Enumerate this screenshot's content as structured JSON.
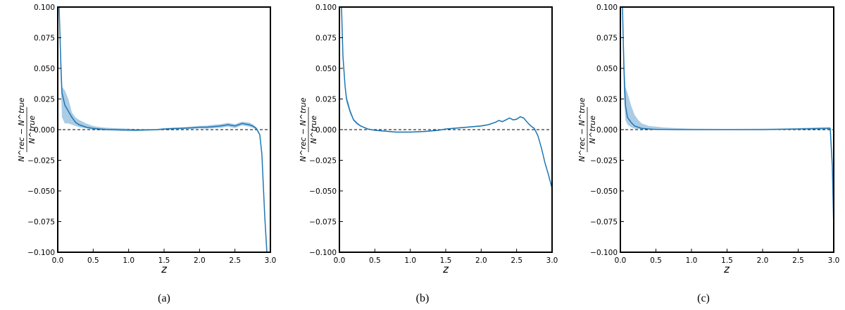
{
  "colors": {
    "line": "#1f77b4",
    "band": "#9cc3e1",
    "zero_line": "#000000",
    "frame": "#000000"
  },
  "labels": {
    "xlabel": "z",
    "ylabel_num": "N^rec − N^true",
    "ylabel_den": "N^true"
  },
  "chart_data": [
    {
      "type": "line",
      "caption": "(a)",
      "xlabel": "z",
      "ylabel": "(N^rec − N^true) / N^true",
      "xlim": [
        0.0,
        3.0
      ],
      "ylim": [
        -0.1,
        0.1
      ],
      "xticks": [
        "0.0",
        "0.5",
        "1.0",
        "1.5",
        "2.0",
        "2.5",
        "3.0"
      ],
      "yticks": [
        "0.100",
        "0.075",
        "0.050",
        "0.025",
        "0.000",
        "−0.025",
        "−0.050",
        "−0.075",
        "−0.100"
      ],
      "reference_line_y": 0.0,
      "series": [
        {
          "x": [
            0.02,
            0.04,
            0.06,
            0.1,
            0.15,
            0.2,
            0.25,
            0.3,
            0.4,
            0.5,
            0.6,
            0.7,
            0.8,
            0.9,
            1.0,
            1.1,
            1.2,
            1.3,
            1.4,
            1.5,
            1.6,
            1.7,
            1.8,
            1.9,
            2.0,
            2.1,
            2.2,
            2.3,
            2.4,
            2.5,
            2.6,
            2.7,
            2.75,
            2.8,
            2.85,
            2.88,
            2.9,
            2.92,
            2.95
          ],
          "y": [
            0.1,
            0.06,
            0.03,
            0.02,
            0.015,
            0.01,
            0.006,
            0.004,
            0.002,
            0.001,
            0.0005,
            0.0002,
            0.0001,
            -0.0001,
            -0.0003,
            -0.0004,
            -0.0003,
            -0.0002,
            0.0,
            0.0005,
            0.0008,
            0.001,
            0.0012,
            0.0015,
            0.002,
            0.002,
            0.0025,
            0.003,
            0.004,
            0.003,
            0.005,
            0.004,
            0.003,
            0.001,
            -0.004,
            -0.02,
            -0.045,
            -0.07,
            -0.1
          ],
          "band_low": [
            0.1,
            0.045,
            0.01,
            0.005,
            0.005,
            0.004,
            0.003,
            0.002,
            0.001,
            0.0,
            -0.0005,
            -0.0008,
            -0.001,
            -0.0012,
            -0.0012,
            -0.0012,
            -0.001,
            -0.0008,
            -0.0006,
            -0.0003,
            0.0,
            0.0002,
            0.0004,
            0.0006,
            0.001,
            0.0008,
            0.0012,
            0.0015,
            0.0025,
            0.0012,
            0.0035,
            0.0025,
            0.0015,
            0.0,
            -0.005,
            -0.021,
            -0.046,
            -0.071,
            -0.1
          ],
          "band_high": [
            0.1,
            0.075,
            0.035,
            0.032,
            0.025,
            0.014,
            0.01,
            0.008,
            0.005,
            0.003,
            0.002,
            0.0015,
            0.0012,
            0.001,
            0.0008,
            0.0005,
            0.0004,
            0.0004,
            0.0006,
            0.0012,
            0.0016,
            0.0018,
            0.0022,
            0.0026,
            0.003,
            0.0032,
            0.004,
            0.0045,
            0.0055,
            0.0045,
            0.0065,
            0.0058,
            0.0045,
            0.002,
            -0.003,
            -0.019,
            -0.044,
            -0.069,
            -0.1
          ]
        }
      ]
    },
    {
      "type": "line",
      "caption": "(b)",
      "xlabel": "z",
      "ylabel": "(N^rec − N^true) / N^true",
      "xlim": [
        0.0,
        3.0
      ],
      "ylim": [
        -0.1,
        0.1
      ],
      "xticks": [
        "0.0",
        "0.5",
        "1.0",
        "1.5",
        "2.0",
        "2.5",
        "3.0"
      ],
      "yticks": [
        "0.100",
        "0.075",
        "0.050",
        "0.025",
        "0.000",
        "−0.025",
        "−0.050",
        "−0.075",
        "−0.100"
      ],
      "reference_line_y": 0.0,
      "series": [
        {
          "x": [
            0.03,
            0.05,
            0.08,
            0.1,
            0.15,
            0.2,
            0.25,
            0.3,
            0.4,
            0.5,
            0.6,
            0.8,
            1.0,
            1.2,
            1.4,
            1.5,
            1.6,
            1.8,
            2.0,
            2.1,
            2.2,
            2.25,
            2.3,
            2.35,
            2.4,
            2.45,
            2.5,
            2.55,
            2.6,
            2.65,
            2.7,
            2.75,
            2.8,
            2.85,
            2.9,
            2.95,
            3.0
          ],
          "y": [
            0.1,
            0.06,
            0.035,
            0.025,
            0.015,
            0.008,
            0.005,
            0.003,
            0.0005,
            -0.0005,
            -0.001,
            -0.002,
            -0.002,
            -0.0015,
            -0.0005,
            0.0005,
            0.001,
            0.002,
            0.003,
            0.004,
            0.006,
            0.0075,
            0.0065,
            0.008,
            0.0095,
            0.008,
            0.0085,
            0.0105,
            0.0095,
            0.006,
            0.003,
            0.001,
            -0.005,
            -0.015,
            -0.027,
            -0.037,
            -0.048
          ],
          "band_low": [
            0.1,
            0.055,
            0.032,
            0.022,
            0.013,
            0.007,
            0.004,
            0.0025,
            0.0,
            -0.001,
            -0.0015,
            -0.0025,
            -0.0025,
            -0.002,
            -0.001,
            0.0,
            0.0005,
            0.0015,
            0.0025,
            0.0035,
            0.0055,
            0.007,
            0.006,
            0.0075,
            0.009,
            0.0075,
            0.008,
            0.01,
            0.009,
            0.0055,
            0.0025,
            0.0005,
            -0.0055,
            -0.0155,
            -0.0275,
            -0.0375,
            -0.0485
          ],
          "band_high": [
            0.1,
            0.065,
            0.038,
            0.028,
            0.017,
            0.009,
            0.006,
            0.0035,
            0.001,
            0.0,
            -0.0005,
            -0.0015,
            -0.0015,
            -0.001,
            0.0,
            0.001,
            0.0015,
            0.0025,
            0.0035,
            0.0045,
            0.0065,
            0.008,
            0.007,
            0.0085,
            0.01,
            0.0085,
            0.009,
            0.011,
            0.01,
            0.0065,
            0.0035,
            0.0015,
            -0.0045,
            -0.0145,
            -0.0265,
            -0.0365,
            -0.0475
          ]
        }
      ]
    },
    {
      "type": "line",
      "caption": "(c)",
      "xlabel": "z",
      "ylabel": "(N^rec − N^true) / N^true",
      "xlim": [
        0.0,
        3.0
      ],
      "ylim": [
        -0.1,
        0.1
      ],
      "xticks": [
        "0.0",
        "0.5",
        "1.0",
        "1.5",
        "2.0",
        "2.5",
        "3.0"
      ],
      "yticks": [
        "0.100",
        "0.075",
        "0.050",
        "0.025",
        "0.000",
        "−0.025",
        "−0.050",
        "−0.075",
        "−0.100"
      ],
      "reference_line_y": 0.0,
      "series": [
        {
          "x": [
            0.03,
            0.05,
            0.07,
            0.1,
            0.15,
            0.2,
            0.25,
            0.3,
            0.4,
            0.5,
            0.6,
            0.8,
            1.0,
            1.5,
            2.0,
            2.5,
            2.8,
            2.95,
            2.98,
            3.0
          ],
          "y": [
            0.1,
            0.05,
            0.02,
            0.01,
            0.006,
            0.003,
            0.002,
            0.001,
            0.0005,
            0.0002,
            0.0001,
            0.0,
            0.0,
            0.0,
            0.0,
            0.0005,
            0.0008,
            0.001,
            -0.03,
            -0.08
          ],
          "band_low": [
            0.1,
            0.03,
            0.008,
            0.004,
            0.002,
            0.0008,
            0.0004,
            0.0002,
            0.0,
            -0.0002,
            -0.0002,
            -0.0002,
            -0.0002,
            -0.0002,
            -0.0002,
            0.0,
            0.0002,
            0.0004,
            -0.031,
            -0.081
          ],
          "band_high": [
            0.1,
            0.07,
            0.035,
            0.03,
            0.02,
            0.012,
            0.008,
            0.005,
            0.003,
            0.0025,
            0.0018,
            0.0012,
            0.0008,
            0.0006,
            0.0008,
            0.0012,
            0.002,
            0.0022,
            -0.029,
            -0.079
          ]
        }
      ]
    }
  ]
}
